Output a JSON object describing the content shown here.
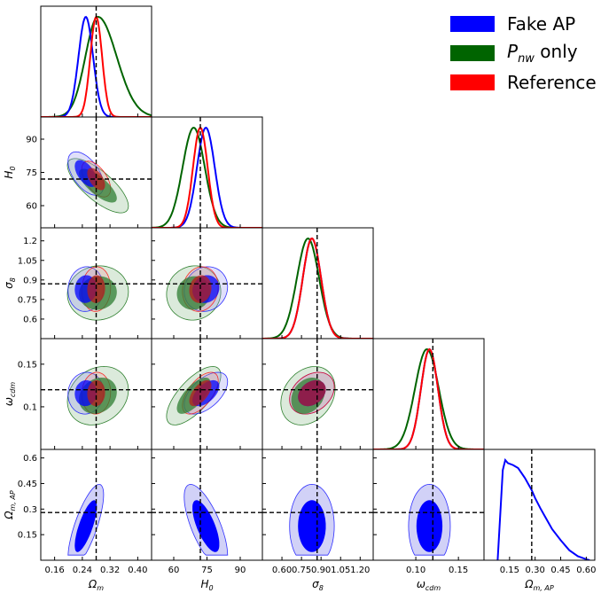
{
  "chart_data": {
    "type": "corner",
    "parameters": [
      {
        "key": "Om",
        "label": "Ω",
        "sub": "m",
        "range": [
          0.12,
          0.44
        ],
        "ticks": [
          0.16,
          0.24,
          0.32,
          0.4
        ],
        "tick_labels": [
          "0.16",
          "0.24",
          "0.32",
          "0.40"
        ],
        "truth": 0.28
      },
      {
        "key": "H0",
        "label": "H",
        "sub": "0",
        "range": [
          50,
          100
        ],
        "ticks": [
          60,
          75,
          90
        ],
        "tick_labels": [
          "60",
          "75",
          "90"
        ],
        "truth": 72
      },
      {
        "key": "s8",
        "label": "σ",
        "sub": "8",
        "range": [
          0.45,
          1.3
        ],
        "ticks": [
          0.6,
          0.75,
          0.9,
          1.05,
          1.2
        ],
        "tick_labels": [
          "0.60",
          "0.75",
          "0.90",
          "1.05",
          "1.20"
        ],
        "y_tick_labels": [
          "0.6",
          "0.75",
          "0.9",
          "1.05",
          "1.2"
        ],
        "truth": 0.87
      },
      {
        "key": "wc",
        "label": "ω",
        "sub": "cdm",
        "range": [
          0.05,
          0.18
        ],
        "ticks": [
          0.1,
          0.15
        ],
        "tick_labels": [
          "0.10",
          "0.15"
        ],
        "y_tick_labels": [
          "0.1",
          "0.15"
        ],
        "truth": 0.12
      },
      {
        "key": "OmAP",
        "label": "Ω",
        "sub": "m, AP",
        "range": [
          0.0,
          0.65
        ],
        "ticks": [
          0.15,
          0.3,
          0.45,
          0.6
        ],
        "tick_labels": [
          "0.15",
          "0.30",
          "0.45",
          "0.60"
        ],
        "y_tick_labels": [
          "0.15",
          "0.3",
          "0.45",
          "0.6"
        ],
        "truth": 0.28
      }
    ],
    "series": [
      {
        "name": "Fake AP",
        "color": "#0000ff",
        "mean": {
          "Om": 0.25,
          "H0": 74.5,
          "s8": 0.83,
          "wc": 0.116,
          "OmAP": 0.2
        },
        "sd": {
          "Om": 0.021,
          "H0": 4.0,
          "s8": 0.07,
          "wc": 0.01,
          "OmAP": 0.1
        },
        "corr": {
          "H0|Om": -0.55,
          "s8|Om": 0.05,
          "s8|H0": 0.1,
          "wc|Om": 0.05,
          "wc|H0": 0.55,
          "wc|s8": 0.3,
          "OmAP|Om": 0.75,
          "OmAP|H0": -0.7,
          "OmAP|s8": 0.0,
          "OmAP|wc": 0.0
        }
      },
      {
        "name": "P_nw only",
        "color": "#006400",
        "mean": {
          "Om": 0.285,
          "H0": 69.0,
          "s8": 0.8,
          "wc": 0.113,
          "OmAP": 0.2
        },
        "sd": {
          "Om": 0.036,
          "H0": 5.0,
          "s8": 0.085,
          "wc": 0.014,
          "OmAP": 0.1
        },
        "corr": {
          "H0|Om": -0.75,
          "s8|Om": 0.05,
          "s8|H0": 0.05,
          "wc|Om": 0.2,
          "wc|H0": 0.7,
          "wc|s8": 0.25,
          "OmAP|Om": 0.0,
          "OmAP|H0": 0.0,
          "OmAP|s8": 0.0,
          "OmAP|wc": 0.0
        }
      },
      {
        "name": "Reference",
        "color": "#ff0000",
        "mean": {
          "Om": 0.28,
          "H0": 72.0,
          "s8": 0.83,
          "wc": 0.116,
          "OmAP": 0.2
        },
        "sd": {
          "Om": 0.017,
          "H0": 3.3,
          "s8": 0.07,
          "wc": 0.01,
          "OmAP": 0.1
        },
        "corr": {
          "H0|Om": -0.55,
          "s8|Om": 0.05,
          "s8|H0": 0.1,
          "wc|Om": 0.05,
          "wc|H0": 0.6,
          "wc|s8": 0.3,
          "OmAP|Om": 0.0,
          "OmAP|H0": 0.0,
          "OmAP|s8": 0.0,
          "OmAP|wc": 0.0
        }
      }
    ],
    "omap_density": {
      "x": [
        0.08,
        0.11,
        0.125,
        0.14,
        0.17,
        0.2,
        0.24,
        0.28,
        0.3,
        0.33,
        0.36,
        0.4,
        0.45,
        0.5,
        0.55,
        0.6,
        0.62
      ],
      "y": [
        0.0,
        0.9,
        1.0,
        0.97,
        0.95,
        0.92,
        0.82,
        0.7,
        0.62,
        0.52,
        0.43,
        0.31,
        0.2,
        0.1,
        0.04,
        0.01,
        0.0
      ]
    },
    "legend": {
      "placement": "top-right"
    }
  },
  "legend": [
    {
      "label": "Fake AP",
      "color": "#0000ff"
    },
    {
      "label": "P",
      "sub": "nw",
      "suffix": " only",
      "color": "#006400"
    },
    {
      "label": "Reference",
      "color": "#ff0000"
    }
  ]
}
